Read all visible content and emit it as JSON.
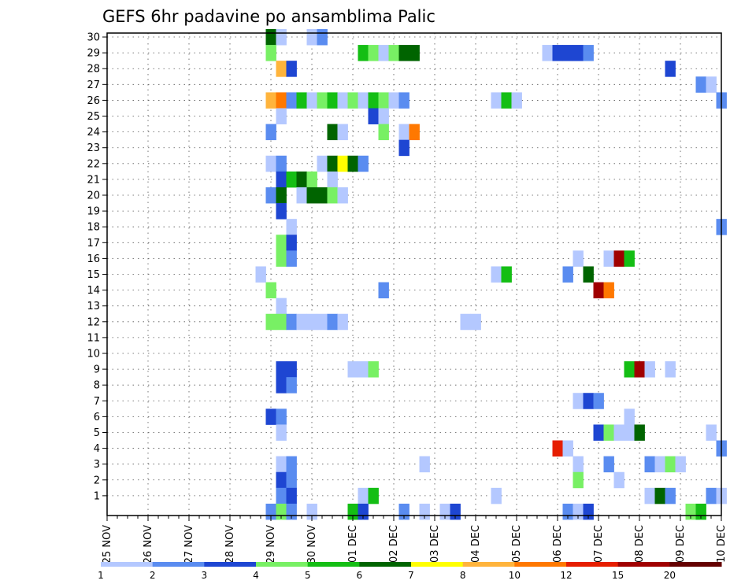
{
  "chart_data": {
    "type": "heatmap",
    "title": "GEFS 6hr padavine po ansamblima Palic",
    "xlabel": "",
    "ylabel": "",
    "x_tick_labels": [
      "25 NOV",
      "26 NOV",
      "27 NOV",
      "28 NOV",
      "29 NOV",
      "30 NOV",
      "01 DEC",
      "02 DEC",
      "03 DEC",
      "04 DEC",
      "05 DEC",
      "06 DEC",
      "07 DEC",
      "08 DEC",
      "09 DEC",
      "10 DEC"
    ],
    "y_tick_labels": [
      "1",
      "2",
      "3",
      "4",
      "5",
      "6",
      "7",
      "8",
      "9",
      "10",
      "11",
      "12",
      "13",
      "14",
      "15",
      "16",
      "17",
      "18",
      "19",
      "20",
      "21",
      "22",
      "23",
      "24",
      "25",
      "26",
      "27",
      "28",
      "29",
      "30"
    ],
    "xlim_days": [
      0,
      15
    ],
    "steps_per_day": 4,
    "ylim": [
      0,
      30
    ],
    "grid": true,
    "colorbar": {
      "colors": [
        "#b4c8ff",
        "#5a8cf0",
        "#1e46d2",
        "#78f064",
        "#14be14",
        "#006400",
        "#ffff00",
        "#ffb43c",
        "#ff7800",
        "#e61e00",
        "#a00000",
        "#640000"
      ],
      "edge_labels": [
        "1",
        "2",
        "3",
        "4",
        "5",
        "6",
        "7",
        "8",
        "10",
        "12",
        "15",
        "20"
      ]
    },
    "cells": [
      [
        4.0,
        30,
        "#006400"
      ],
      [
        4.25,
        30,
        "#b4c8ff"
      ],
      [
        5.0,
        30,
        "#b4c8ff"
      ],
      [
        5.25,
        30,
        "#5a8cf0"
      ],
      [
        4.0,
        29,
        "#78f064"
      ],
      [
        6.25,
        29,
        "#14be14"
      ],
      [
        6.5,
        29,
        "#78f064"
      ],
      [
        6.75,
        29,
        "#b4c8ff"
      ],
      [
        7.0,
        29,
        "#78f064"
      ],
      [
        7.25,
        29,
        "#006400"
      ],
      [
        7.5,
        29,
        "#006400"
      ],
      [
        10.75,
        29,
        "#b4c8ff"
      ],
      [
        11.0,
        29,
        "#1e46d2"
      ],
      [
        11.25,
        29,
        "#1e46d2"
      ],
      [
        11.5,
        29,
        "#1e46d2"
      ],
      [
        11.75,
        29,
        "#5a8cf0"
      ],
      [
        4.25,
        28,
        "#ffb43c"
      ],
      [
        4.5,
        28,
        "#1e46d2"
      ],
      [
        13.75,
        28,
        "#1e46d2"
      ],
      [
        14.5,
        27,
        "#5a8cf0"
      ],
      [
        14.75,
        27,
        "#b4c8ff"
      ],
      [
        4.0,
        26,
        "#ffb43c"
      ],
      [
        4.25,
        26,
        "#ff7800"
      ],
      [
        4.5,
        26,
        "#5a8cf0"
      ],
      [
        4.75,
        26,
        "#14be14"
      ],
      [
        5.0,
        26,
        "#b4c8ff"
      ],
      [
        5.25,
        26,
        "#78f064"
      ],
      [
        5.5,
        26,
        "#14be14"
      ],
      [
        5.75,
        26,
        "#b4c8ff"
      ],
      [
        6.0,
        26,
        "#78f064"
      ],
      [
        6.25,
        26,
        "#b4c8ff"
      ],
      [
        6.5,
        26,
        "#14be14"
      ],
      [
        6.75,
        26,
        "#78f064"
      ],
      [
        7.0,
        26,
        "#b4c8ff"
      ],
      [
        7.25,
        26,
        "#5a8cf0"
      ],
      [
        9.5,
        26,
        "#b4c8ff"
      ],
      [
        9.75,
        26,
        "#14be14"
      ],
      [
        10.0,
        26,
        "#b4c8ff"
      ],
      [
        15.0,
        26,
        "#5a8cf0"
      ],
      [
        4.25,
        25,
        "#b4c8ff"
      ],
      [
        6.5,
        25,
        "#1e46d2"
      ],
      [
        6.75,
        25,
        "#b4c8ff"
      ],
      [
        4.0,
        24,
        "#5a8cf0"
      ],
      [
        5.5,
        24,
        "#006400"
      ],
      [
        5.75,
        24,
        "#b4c8ff"
      ],
      [
        6.75,
        24,
        "#78f064"
      ],
      [
        7.25,
        24,
        "#b4c8ff"
      ],
      [
        7.5,
        24,
        "#ff7800"
      ],
      [
        7.25,
        23,
        "#1e46d2"
      ],
      [
        4.0,
        22,
        "#b4c8ff"
      ],
      [
        4.25,
        22,
        "#5a8cf0"
      ],
      [
        5.25,
        22,
        "#b4c8ff"
      ],
      [
        5.5,
        22,
        "#006400"
      ],
      [
        5.75,
        22,
        "#ffff00"
      ],
      [
        6.0,
        22,
        "#006400"
      ],
      [
        6.25,
        22,
        "#5a8cf0"
      ],
      [
        4.25,
        21,
        "#1e46d2"
      ],
      [
        4.5,
        21,
        "#14be14"
      ],
      [
        4.75,
        21,
        "#006400"
      ],
      [
        5.0,
        21,
        "#78f064"
      ],
      [
        5.5,
        21,
        "#b4c8ff"
      ],
      [
        4.0,
        20,
        "#5a8cf0"
      ],
      [
        4.25,
        20,
        "#006400"
      ],
      [
        4.75,
        20,
        "#b4c8ff"
      ],
      [
        5.0,
        20,
        "#006400"
      ],
      [
        5.25,
        20,
        "#006400"
      ],
      [
        5.5,
        20,
        "#78f064"
      ],
      [
        5.75,
        20,
        "#b4c8ff"
      ],
      [
        4.25,
        19,
        "#1e46d2"
      ],
      [
        4.5,
        18,
        "#b4c8ff"
      ],
      [
        15.0,
        18,
        "#5a8cf0"
      ],
      [
        4.25,
        17,
        "#78f064"
      ],
      [
        4.5,
        17,
        "#1e46d2"
      ],
      [
        4.25,
        16,
        "#78f064"
      ],
      [
        4.5,
        16,
        "#5a8cf0"
      ],
      [
        11.5,
        16,
        "#b4c8ff"
      ],
      [
        12.25,
        16,
        "#b4c8ff"
      ],
      [
        12.5,
        16,
        "#a00000"
      ],
      [
        12.75,
        16,
        "#14be14"
      ],
      [
        3.75,
        15,
        "#b4c8ff"
      ],
      [
        9.5,
        15,
        "#b4c8ff"
      ],
      [
        9.75,
        15,
        "#14be14"
      ],
      [
        11.25,
        15,
        "#5a8cf0"
      ],
      [
        11.75,
        15,
        "#006400"
      ],
      [
        4.0,
        14,
        "#78f064"
      ],
      [
        6.75,
        14,
        "#5a8cf0"
      ],
      [
        12.0,
        14,
        "#a00000"
      ],
      [
        12.25,
        14,
        "#ff7800"
      ],
      [
        4.25,
        13,
        "#b4c8ff"
      ],
      [
        4.0,
        12,
        "#78f064"
      ],
      [
        4.25,
        12,
        "#78f064"
      ],
      [
        4.5,
        12,
        "#5a8cf0"
      ],
      [
        4.75,
        12,
        "#b4c8ff"
      ],
      [
        5.0,
        12,
        "#b4c8ff"
      ],
      [
        5.25,
        12,
        "#b4c8ff"
      ],
      [
        5.5,
        12,
        "#5a8cf0"
      ],
      [
        5.75,
        12,
        "#b4c8ff"
      ],
      [
        8.75,
        12,
        "#b4c8ff"
      ],
      [
        9.0,
        12,
        "#b4c8ff"
      ],
      [
        4.25,
        9,
        "#1e46d2"
      ],
      [
        4.5,
        9,
        "#1e46d2"
      ],
      [
        6.0,
        9,
        "#b4c8ff"
      ],
      [
        6.25,
        9,
        "#b4c8ff"
      ],
      [
        6.5,
        9,
        "#78f064"
      ],
      [
        12.75,
        9,
        "#14be14"
      ],
      [
        13.0,
        9,
        "#a00000"
      ],
      [
        13.25,
        9,
        "#b4c8ff"
      ],
      [
        13.75,
        9,
        "#b4c8ff"
      ],
      [
        4.25,
        8,
        "#1e46d2"
      ],
      [
        4.5,
        8,
        "#5a8cf0"
      ],
      [
        11.5,
        7,
        "#b4c8ff"
      ],
      [
        11.75,
        7,
        "#1e46d2"
      ],
      [
        12.0,
        7,
        "#5a8cf0"
      ],
      [
        4.0,
        6,
        "#1e46d2"
      ],
      [
        4.25,
        6,
        "#5a8cf0"
      ],
      [
        12.75,
        6,
        "#b4c8ff"
      ],
      [
        4.25,
        5,
        "#b4c8ff"
      ],
      [
        12.0,
        5,
        "#1e46d2"
      ],
      [
        12.25,
        5,
        "#78f064"
      ],
      [
        12.5,
        5,
        "#b4c8ff"
      ],
      [
        12.75,
        5,
        "#b4c8ff"
      ],
      [
        13.0,
        5,
        "#006400"
      ],
      [
        14.75,
        5,
        "#b4c8ff"
      ],
      [
        11.0,
        4,
        "#e61e00"
      ],
      [
        11.25,
        4,
        "#b4c8ff"
      ],
      [
        15.0,
        4,
        "#5a8cf0"
      ],
      [
        4.25,
        3,
        "#b4c8ff"
      ],
      [
        4.5,
        3,
        "#5a8cf0"
      ],
      [
        7.75,
        3,
        "#b4c8ff"
      ],
      [
        11.5,
        3,
        "#b4c8ff"
      ],
      [
        12.25,
        3,
        "#5a8cf0"
      ],
      [
        13.25,
        3,
        "#5a8cf0"
      ],
      [
        13.5,
        3,
        "#b4c8ff"
      ],
      [
        13.75,
        3,
        "#78f064"
      ],
      [
        14.0,
        3,
        "#b4c8ff"
      ],
      [
        4.25,
        2,
        "#1e46d2"
      ],
      [
        4.5,
        2,
        "#5a8cf0"
      ],
      [
        11.5,
        2,
        "#78f064"
      ],
      [
        12.5,
        2,
        "#b4c8ff"
      ],
      [
        4.25,
        1,
        "#5a8cf0"
      ],
      [
        4.5,
        1,
        "#1e46d2"
      ],
      [
        6.25,
        1,
        "#b4c8ff"
      ],
      [
        6.5,
        1,
        "#14be14"
      ],
      [
        9.5,
        1,
        "#b4c8ff"
      ],
      [
        13.25,
        1,
        "#b4c8ff"
      ],
      [
        13.5,
        1,
        "#006400"
      ],
      [
        13.75,
        1,
        "#5a8cf0"
      ],
      [
        14.75,
        1,
        "#5a8cf0"
      ],
      [
        15.0,
        1,
        "#b4c8ff"
      ],
      [
        4.0,
        0,
        "#5a8cf0"
      ],
      [
        4.25,
        0,
        "#78f064"
      ],
      [
        4.5,
        0,
        "#5a8cf0"
      ],
      [
        5.0,
        0,
        "#b4c8ff"
      ],
      [
        6.0,
        0,
        "#14be14"
      ],
      [
        6.25,
        0,
        "#1e46d2"
      ],
      [
        7.25,
        0,
        "#5a8cf0"
      ],
      [
        7.75,
        0,
        "#b4c8ff"
      ],
      [
        8.25,
        0,
        "#b4c8ff"
      ],
      [
        8.5,
        0,
        "#1e46d2"
      ],
      [
        11.25,
        0,
        "#5a8cf0"
      ],
      [
        11.5,
        0,
        "#b4c8ff"
      ],
      [
        11.75,
        0,
        "#1e46d2"
      ],
      [
        14.25,
        0,
        "#78f064"
      ],
      [
        14.5,
        0,
        "#14be14"
      ]
    ]
  }
}
